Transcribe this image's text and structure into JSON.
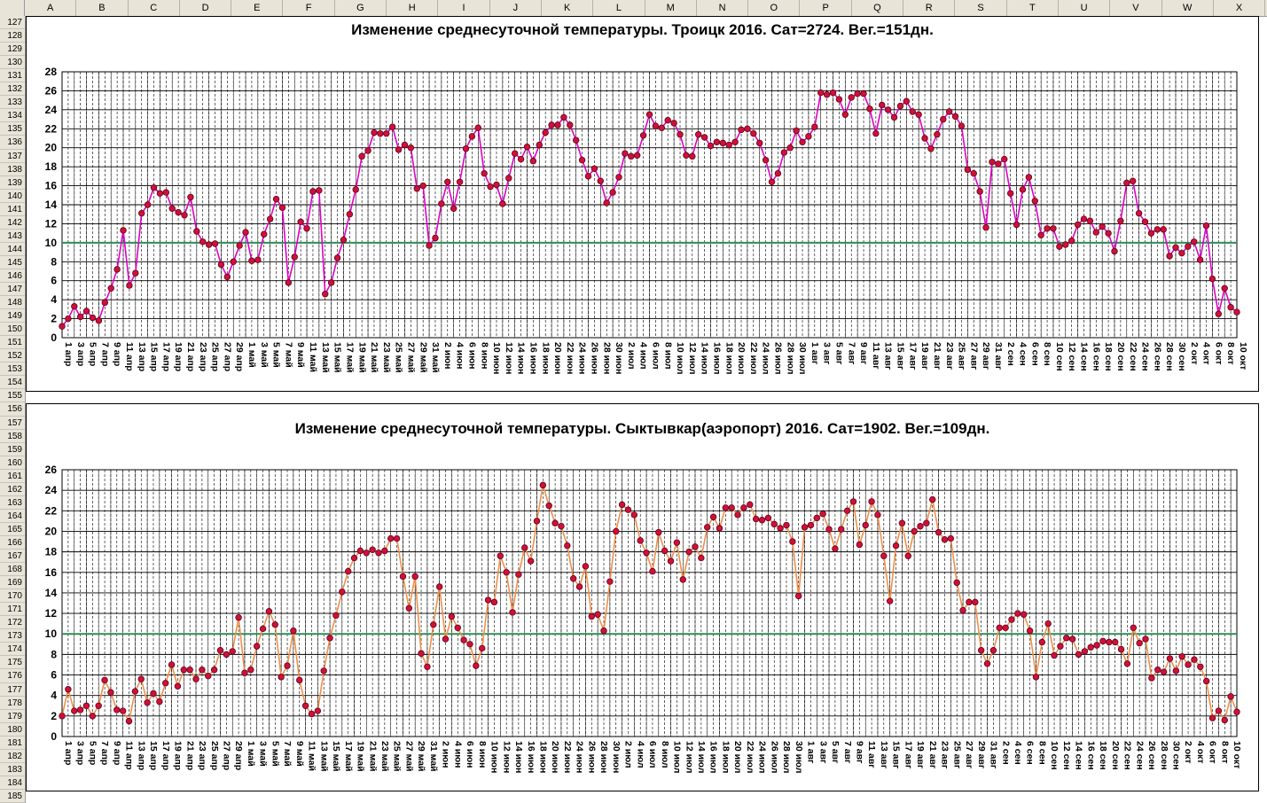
{
  "sheet": {
    "columns": [
      "A",
      "B",
      "C",
      "D",
      "E",
      "F",
      "G",
      "H",
      "I",
      "J",
      "K",
      "L",
      "M",
      "N",
      "O",
      "P",
      "Q",
      "R",
      "S",
      "T",
      "U",
      "V",
      "W",
      "X"
    ],
    "row_start": 127,
    "row_end": 185
  },
  "colors": {
    "chart1_line": "#e000c8",
    "chart2_line": "#f0904a",
    "marker_fill": "#d0103a",
    "marker_stroke": "#600018",
    "threshold_line": "#2e8b57",
    "grid": "#000000"
  },
  "chart_data": [
    {
      "type": "line",
      "title": "Изменение среднесуточной температуры. Троицк 2016. Сат=2724. Вег.=151дн.",
      "ylim": [
        0,
        28
      ],
      "yticks": [
        0,
        2,
        4,
        6,
        8,
        10,
        12,
        14,
        16,
        18,
        20,
        22,
        24,
        26,
        28
      ],
      "threshold": 10,
      "grid": true,
      "x_tick_labels": [
        "1 апр",
        "3 апр",
        "5 апр",
        "7 апр",
        "9 апр",
        "11 апр",
        "13 апр",
        "15 апр",
        "17 апр",
        "19 апр",
        "21 апр",
        "23 апр",
        "25 апр",
        "27 апр",
        "29 апр",
        "1 май",
        "3 май",
        "5 май",
        "7 май",
        "9 май",
        "11 май",
        "13 май",
        "15 май",
        "17 май",
        "19 май",
        "21 май",
        "23 май",
        "25 май",
        "27 май",
        "29 май",
        "31 май",
        "2 июн",
        "4 июн",
        "6 июн",
        "8 июн",
        "10 июн",
        "12 июн",
        "14 июн",
        "16 июн",
        "18 июн",
        "20 июн",
        "22 июн",
        "24 июн",
        "26 июн",
        "28 июн",
        "30 июн",
        "2 июл",
        "4 июл",
        "6 июл",
        "8 июл",
        "10 июл",
        "12 июл",
        "14 июл",
        "16 июл",
        "18 июл",
        "20 июл",
        "22 июл",
        "24 июл",
        "26 июл",
        "28 июл",
        "30 июл",
        "1 авг",
        "3 авг",
        "5 авг",
        "7 авг",
        "9 авг",
        "11 авг",
        "13 авг",
        "15 авг",
        "17 авг",
        "19 авг",
        "21 авг",
        "23 авг",
        "25 авг",
        "27 авг",
        "29 авг",
        "31 авг",
        "2 сен",
        "4 сен",
        "6 сен",
        "8 сен",
        "10 сен",
        "12 сен",
        "14 сен",
        "16 сен",
        "18 сен",
        "20 сен",
        "22 сен",
        "24 сен",
        "26 сен",
        "28 сен",
        "30 сен",
        "2 окт",
        "4 окт",
        "6 окт",
        "8 окт",
        "10 окт"
      ],
      "values": [
        1.2,
        2.0,
        3.3,
        2.2,
        2.8,
        2.1,
        1.8,
        3.7,
        5.2,
        7.2,
        11.3,
        5.5,
        6.8,
        13.1,
        14.0,
        15.8,
        15.2,
        15.3,
        13.6,
        13.2,
        12.9,
        14.8,
        11.2,
        10.1,
        9.8,
        9.9,
        7.7,
        6.4,
        8.0,
        9.7,
        11.1,
        8.1,
        8.2,
        10.9,
        12.5,
        14.6,
        13.7,
        5.8,
        8.5,
        12.2,
        11.5,
        15.4,
        15.5,
        4.6,
        5.8,
        8.4,
        10.3,
        13.0,
        15.6,
        19.1,
        19.7,
        21.6,
        21.5,
        21.5,
        22.2,
        19.8,
        20.3,
        20.0,
        15.7,
        16.0,
        9.7,
        10.5,
        14.1,
        16.4,
        13.6,
        16.4,
        19.9,
        21.2,
        22.1,
        17.3,
        15.9,
        16.1,
        14.1,
        16.8,
        19.4,
        18.8,
        20.1,
        18.6,
        20.3,
        21.6,
        22.4,
        22.4,
        23.2,
        22.4,
        20.8,
        18.7,
        17.0,
        17.8,
        16.5,
        14.2,
        15.3,
        16.9,
        19.4,
        19.1,
        19.2,
        21.3,
        23.5,
        22.3,
        22.1,
        22.9,
        22.6,
        21.4,
        19.2,
        19.1,
        21.4,
        21.1,
        20.2,
        20.6,
        20.5,
        20.3,
        20.6,
        21.9,
        22.0,
        21.5,
        20.5,
        18.7,
        16.4,
        17.3,
        19.5,
        20.0,
        21.8,
        20.6,
        21.2,
        22.2,
        25.8,
        25.6,
        25.8,
        25.1,
        23.5,
        25.3,
        25.7,
        25.7,
        24.1,
        21.5,
        24.5,
        24.0,
        23.2,
        24.4,
        24.9,
        23.8,
        23.5,
        21.0,
        19.9,
        21.4,
        23.0,
        23.8,
        23.3,
        22.3,
        17.7,
        17.3,
        15.4,
        11.6,
        18.5,
        18.3,
        18.8,
        15.2,
        11.9,
        15.6,
        16.9,
        14.4,
        10.8,
        11.5,
        11.5,
        9.6,
        9.8,
        10.2,
        11.9,
        12.5,
        12.3,
        11.1,
        11.7,
        11.0,
        9.1,
        12.3,
        16.3,
        16.5,
        13.1,
        12.2,
        11.0,
        11.4,
        11.4,
        8.6,
        9.5,
        8.9,
        9.6,
        10.1,
        8.2,
        11.8,
        6.2,
        2.5,
        5.2,
        3.2,
        2.7
      ]
    },
    {
      "type": "line",
      "title": "Изменение среднесуточной температуры. Сыктывкар(аэропорт) 2016. Сат=1902. Вег.=109дн.",
      "ylim": [
        0,
        26
      ],
      "yticks": [
        0,
        2,
        4,
        6,
        8,
        10,
        12,
        14,
        16,
        18,
        20,
        22,
        24,
        26
      ],
      "threshold": 10,
      "grid": true,
      "x_tick_labels": [
        "1 апр",
        "3 апр",
        "5 апр",
        "7 апр",
        "9 апр",
        "11 апр",
        "13 апр",
        "15 апр",
        "17 апр",
        "19 апр",
        "21 апр",
        "23 апр",
        "25 апр",
        "27 апр",
        "29 апр",
        "1 май",
        "3 май",
        "5 май",
        "7 май",
        "9 май",
        "11 май",
        "13 май",
        "15 май",
        "17 май",
        "19 май",
        "21 май",
        "23 май",
        "25 май",
        "27 май",
        "29 май",
        "31 май",
        "2 июн",
        "4 июн",
        "6 июн",
        "8 июн",
        "10 июн",
        "12 июн",
        "14 июн",
        "16 июн",
        "18 июн",
        "20 июн",
        "22 июн",
        "24 июн",
        "26 июн",
        "28 июн",
        "30 июн",
        "2 июл",
        "4 июл",
        "6 июл",
        "8 июл",
        "10 июл",
        "12 июл",
        "14 июл",
        "16 июл",
        "18 июл",
        "20 июл",
        "22 июл",
        "24 июл",
        "26 июл",
        "28 июл",
        "30 июл",
        "1 авг",
        "3 авг",
        "5 авг",
        "7 авг",
        "9 авг",
        "11 авг",
        "13 авг",
        "15 авг",
        "17 авг",
        "19 авг",
        "21 авг",
        "23 авг",
        "25 авг",
        "27 авг",
        "29 авг",
        "31 авг",
        "2 сен",
        "4 сен",
        "6 сен",
        "8 сен",
        "10 сен",
        "12 сен",
        "14 сен",
        "16 сен",
        "18 сен",
        "20 сен",
        "22 сен",
        "24 сен",
        "26 сен",
        "28 сен",
        "30 сен",
        "2 окт",
        "4 окт",
        "6 окт",
        "8 окт",
        "10 окт"
      ],
      "values": [
        2.0,
        4.6,
        2.5,
        2.6,
        3.0,
        2.0,
        3.0,
        5.5,
        4.3,
        2.6,
        2.5,
        1.5,
        4.4,
        5.6,
        3.3,
        4.2,
        3.4,
        5.2,
        7.0,
        4.9,
        6.5,
        6.5,
        5.6,
        6.5,
        5.9,
        6.5,
        8.4,
        8.0,
        8.3,
        11.6,
        6.2,
        6.5,
        8.8,
        10.5,
        12.2,
        10.9,
        5.8,
        6.9,
        10.3,
        5.5,
        3.0,
        2.2,
        2.5,
        6.4,
        9.6,
        11.8,
        14.1,
        16.1,
        17.4,
        18.1,
        17.9,
        18.2,
        17.9,
        18.1,
        19.3,
        19.3,
        15.6,
        12.5,
        15.6,
        8.1,
        6.8,
        10.9,
        14.6,
        9.5,
        11.7,
        10.6,
        9.4,
        9.0,
        6.9,
        8.6,
        13.3,
        13.1,
        17.6,
        16.0,
        12.1,
        15.8,
        18.4,
        17.1,
        21.0,
        24.5,
        22.5,
        20.8,
        20.5,
        18.6,
        15.4,
        14.6,
        16.6,
        11.7,
        11.9,
        10.3,
        15.1,
        20.0,
        22.6,
        22.1,
        21.6,
        19.1,
        17.9,
        16.1,
        19.9,
        18.1,
        17.1,
        18.9,
        15.3,
        18.0,
        18.5,
        17.4,
        20.4,
        21.4,
        20.3,
        22.3,
        22.3,
        21.6,
        22.3,
        22.6,
        21.2,
        21.1,
        21.3,
        20.7,
        20.3,
        20.6,
        19.0,
        13.7,
        20.4,
        20.6,
        21.3,
        21.7,
        20.2,
        18.3,
        20.2,
        22.0,
        22.9,
        18.7,
        20.6,
        22.9,
        21.6,
        17.6,
        13.2,
        18.6,
        20.8,
        17.6,
        20.0,
        20.5,
        20.8,
        23.1,
        19.9,
        19.2,
        19.3,
        15.0,
        12.3,
        13.1,
        13.1,
        8.4,
        7.1,
        8.4,
        10.6,
        10.6,
        11.4,
        12.0,
        11.9,
        10.3,
        5.8,
        9.2,
        11.0,
        7.9,
        8.8,
        9.6,
        9.5,
        8.0,
        8.3,
        8.7,
        8.9,
        9.3,
        9.2,
        9.2,
        8.5,
        7.1,
        10.6,
        9.1,
        9.5,
        5.7,
        6.5,
        6.3,
        7.6,
        6.4,
        7.8,
        7.0,
        7.5,
        6.8,
        5.4,
        1.8,
        2.5,
        1.6,
        3.9,
        2.4
      ]
    }
  ]
}
